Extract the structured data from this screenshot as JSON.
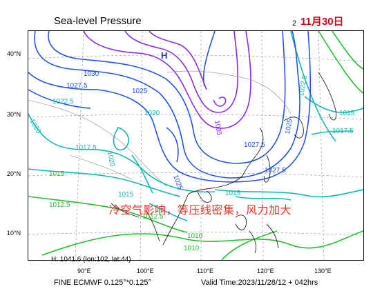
{
  "title": "Sea-level Pressure",
  "date_small": "2",
  "date_red": "11月30日",
  "annotation": "冷空气影响，等压线密集，风力加大",
  "high_marker": "H",
  "high_info": "H: 1041.6 (lon:102, lat:44)",
  "model_label": "FINE ECMWF 0.125°*0.125°",
  "valid_time": "Valid Time:2023/11/28/12 + 042hrs",
  "lat_labels": [
    "40°N",
    "30°N",
    "20°N",
    "10°N"
  ],
  "lon_labels": [
    "90°E",
    "100°E",
    "110°E",
    "120°E",
    "130°E"
  ],
  "contour_labels": [
    "1030",
    "1027.5",
    "1025",
    "1022.5",
    "1020",
    "1017.5",
    "1015",
    "1012.5",
    "1010",
    "1035",
    "1027.5",
    "1025",
    "1022.5",
    "1015",
    "1017.5",
    "1015",
    "1012.5",
    "1010",
    "1015",
    "1025",
    "1020",
    "1020",
    "1027.5"
  ],
  "colors": {
    "purple": "#8a2be2",
    "blue": "#2255e0",
    "teal": "#10b8b0",
    "green": "#22c030",
    "red": "#e8322b",
    "coast": "#222222"
  }
}
